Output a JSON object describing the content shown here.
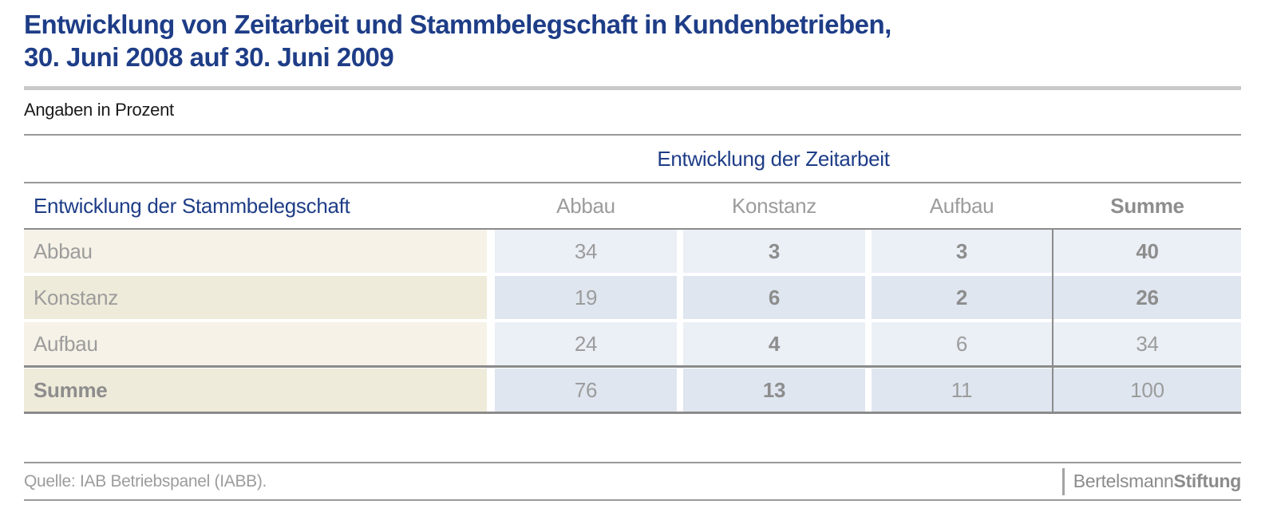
{
  "title": {
    "line1": "Entwicklung von Zeitarbeit und Stammbelegschaft in Kundenbetrieben,",
    "line2": "30. Juni 2008 auf 30. Juni 2009"
  },
  "subtitle": "Angaben in Prozent",
  "table": {
    "group_header": "Entwicklung der Zeitarbeit",
    "row_header": "Entwicklung der Stammbelegschaft",
    "col_headers": [
      "Abbau",
      "Konstanz",
      "Aufbau",
      "Summe"
    ],
    "rows": [
      {
        "label": "Abbau",
        "values": [
          "34",
          "3",
          "3",
          "40"
        ]
      },
      {
        "label": "Konstanz",
        "values": [
          "19",
          "6",
          "2",
          "26"
        ]
      },
      {
        "label": "Aufbau",
        "values": [
          "24",
          "4",
          "6",
          "34"
        ]
      },
      {
        "label": "Summe",
        "values": [
          "76",
          "13",
          "11",
          "100"
        ]
      }
    ]
  },
  "footer": {
    "source": "Quelle: IAB Betriebspanel (IABB).",
    "logo_part1": "Bertelsmann",
    "logo_part2": "Stiftung"
  },
  "colors": {
    "accent_blue": "#1e3d87",
    "cell_blue_light": "#ebeff6",
    "cell_blue_dark": "#dfe6f0",
    "cell_beige_light": "#f6f2e7",
    "cell_beige_dark": "#efebda",
    "text_gray": "#9c9c9c",
    "text_gray_bold": "#8d8d8d",
    "line_gray": "#8b8b8b",
    "rule_light_gray": "#c9c9c9"
  },
  "chart_data": {
    "type": "table",
    "title": "Entwicklung von Zeitarbeit und Stammbelegschaft in Kundenbetrieben, 30. Juni 2008 auf 30. Juni 2009",
    "unit": "Angaben in Prozent",
    "column_group_label": "Entwicklung der Zeitarbeit",
    "row_group_label": "Entwicklung der Stammbelegschaft",
    "columns": [
      "Abbau",
      "Konstanz",
      "Aufbau",
      "Summe"
    ],
    "rows": [
      "Abbau",
      "Konstanz",
      "Aufbau",
      "Summe"
    ],
    "values": [
      [
        34,
        3,
        3,
        40
      ],
      [
        19,
        6,
        2,
        26
      ],
      [
        24,
        4,
        6,
        34
      ],
      [
        76,
        13,
        11,
        100
      ]
    ],
    "source": "Quelle: IAB Betriebspanel (IABB)."
  }
}
